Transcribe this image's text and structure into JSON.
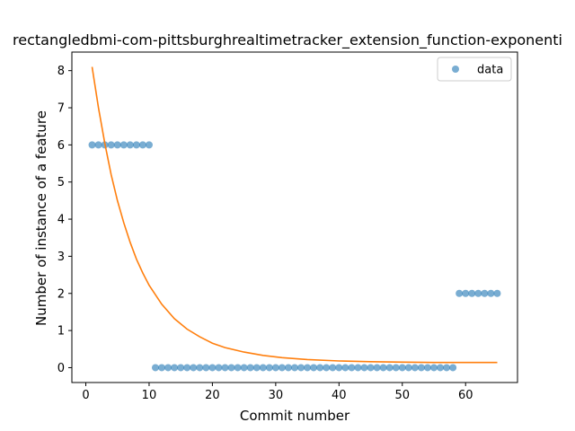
{
  "chart_data": {
    "type": "scatter",
    "title": "rectangledbmi-com-pittsburghrealtimetracker_extension_function-exponenti",
    "xlabel": "Commit number",
    "ylabel": "Number of instance of a feature",
    "xlim": [
      -2.2,
      68.2
    ],
    "ylim": [
      -0.4,
      8.5
    ],
    "xticks": [
      0,
      10,
      20,
      30,
      40,
      50,
      60
    ],
    "yticks": [
      0,
      1,
      2,
      3,
      4,
      5,
      6,
      7,
      8
    ],
    "grid": false,
    "legend": {
      "placement": "top-right",
      "entries": [
        "data"
      ]
    },
    "series": [
      {
        "name": "data",
        "kind": "points",
        "color": "#1f77b4",
        "x": [
          1,
          2,
          3,
          4,
          5,
          6,
          7,
          8,
          9,
          10,
          11,
          12,
          13,
          14,
          15,
          16,
          17,
          18,
          19,
          20,
          21,
          22,
          23,
          24,
          25,
          26,
          27,
          28,
          29,
          30,
          31,
          32,
          33,
          34,
          35,
          36,
          37,
          38,
          39,
          40,
          41,
          42,
          43,
          44,
          45,
          46,
          47,
          48,
          49,
          50,
          51,
          52,
          53,
          54,
          55,
          56,
          57,
          58,
          59,
          60,
          61,
          62,
          63,
          64,
          65
        ],
        "y": [
          6,
          6,
          6,
          6,
          6,
          6,
          6,
          6,
          6,
          6,
          0,
          0,
          0,
          0,
          0,
          0,
          0,
          0,
          0,
          0,
          0,
          0,
          0,
          0,
          0,
          0,
          0,
          0,
          0,
          0,
          0,
          0,
          0,
          0,
          0,
          0,
          0,
          0,
          0,
          0,
          0,
          0,
          0,
          0,
          0,
          0,
          0,
          0,
          0,
          0,
          0,
          0,
          0,
          0,
          0,
          0,
          0,
          0,
          2,
          2,
          2,
          2,
          2,
          2,
          2
        ]
      },
      {
        "kind": "fitted-curve",
        "color": "#ff7f0e",
        "x": [
          1,
          2,
          3,
          4,
          5,
          6,
          7,
          8,
          9,
          10,
          12,
          14,
          16,
          18,
          20,
          22,
          25,
          28,
          31,
          35,
          40,
          45,
          50,
          55,
          60,
          65
        ],
        "y": [
          8.1,
          7.0,
          6.05,
          5.2,
          4.5,
          3.9,
          3.38,
          2.92,
          2.55,
          2.22,
          1.71,
          1.32,
          1.04,
          0.83,
          0.66,
          0.54,
          0.42,
          0.33,
          0.27,
          0.22,
          0.18,
          0.16,
          0.15,
          0.14,
          0.14,
          0.14
        ]
      }
    ]
  }
}
